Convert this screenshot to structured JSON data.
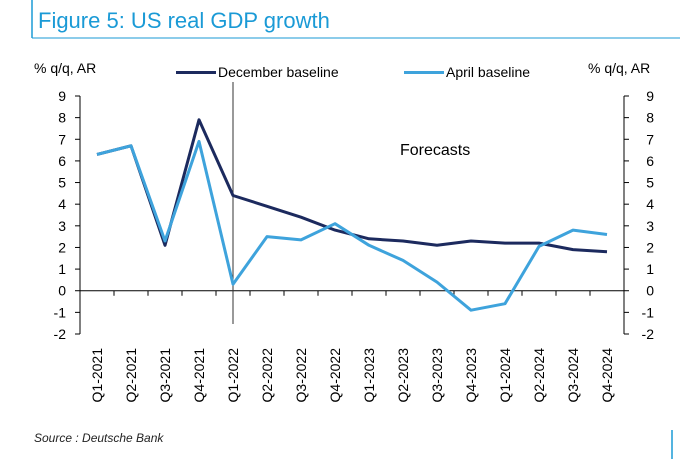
{
  "figure": {
    "title": "Figure 5: US real GDP growth",
    "y_unit_left": "% q/q, AR",
    "y_unit_right": "% q/q, AR",
    "annotation": "Forecasts",
    "source": "Source : Deutsche Bank"
  },
  "colors": {
    "title": "#1a9ad6",
    "december": "#1c2a5e",
    "april": "#3ea3dc",
    "frame": "#1a9ad6"
  },
  "chart_data": {
    "type": "line",
    "categories": [
      "Q1-2021",
      "Q2-2021",
      "Q3-2021",
      "Q4-2021",
      "Q1-2022",
      "Q2-2022",
      "Q3-2022",
      "Q4-2022",
      "Q1-2023",
      "Q2-2023",
      "Q3-2023",
      "Q4-2023",
      "Q1-2024",
      "Q2-2024",
      "Q3-2024",
      "Q4-2024"
    ],
    "series": [
      {
        "name": "December baseline",
        "values": [
          6.3,
          6.7,
          2.1,
          7.9,
          4.4,
          3.9,
          3.4,
          2.8,
          2.4,
          2.3,
          2.1,
          2.3,
          2.2,
          2.2,
          1.9,
          1.8
        ]
      },
      {
        "name": "April baseline",
        "values": [
          6.3,
          6.7,
          2.3,
          6.9,
          0.3,
          2.5,
          2.35,
          3.1,
          2.1,
          1.4,
          0.4,
          -0.9,
          -0.6,
          2.05,
          2.8,
          2.6
        ]
      }
    ],
    "ylim": [
      -2,
      9
    ],
    "yticks": [
      "-2",
      "-1",
      "0",
      "1",
      "2",
      "3",
      "4",
      "5",
      "6",
      "7",
      "8",
      "9"
    ],
    "forecast_start_category": "Q1-2022",
    "legend_position": "top",
    "grid": false
  }
}
